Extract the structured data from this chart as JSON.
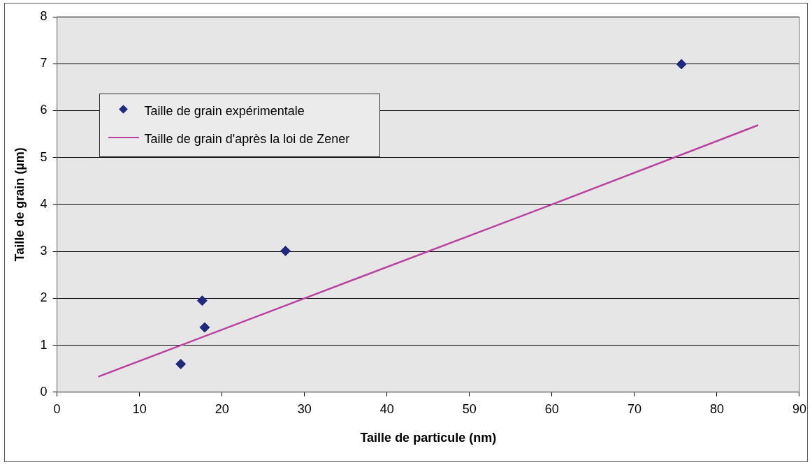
{
  "chart_data": {
    "type": "scatter",
    "xlabel": "Taille de particule (nm)",
    "ylabel": "Taille de grain (µm)",
    "xlim": [
      0,
      90
    ],
    "xticks": [
      0,
      10,
      20,
      30,
      40,
      50,
      60,
      70,
      80,
      90
    ],
    "ylim": [
      0,
      8
    ],
    "yticks": [
      0,
      1,
      2,
      3,
      4,
      5,
      6,
      7,
      8
    ],
    "grid": "y",
    "legend": "top left",
    "series": [
      {
        "name": "Taille de grain expérimentale",
        "color": "#1f2a7f",
        "marker": "diamond",
        "x": [
          15,
          17.6,
          17.9,
          27.7,
          75.7
        ],
        "values": [
          0.6,
          1.95,
          1.38,
          3.01,
          6.99
        ]
      },
      {
        "name": "Taille de grain d'après la loi de Zener",
        "type": "line",
        "marker": "none",
        "color": "#b8409e",
        "x": [
          5,
          30,
          60,
          85
        ],
        "values": [
          0.33,
          2.0,
          4.0,
          5.69
        ]
      }
    ]
  }
}
